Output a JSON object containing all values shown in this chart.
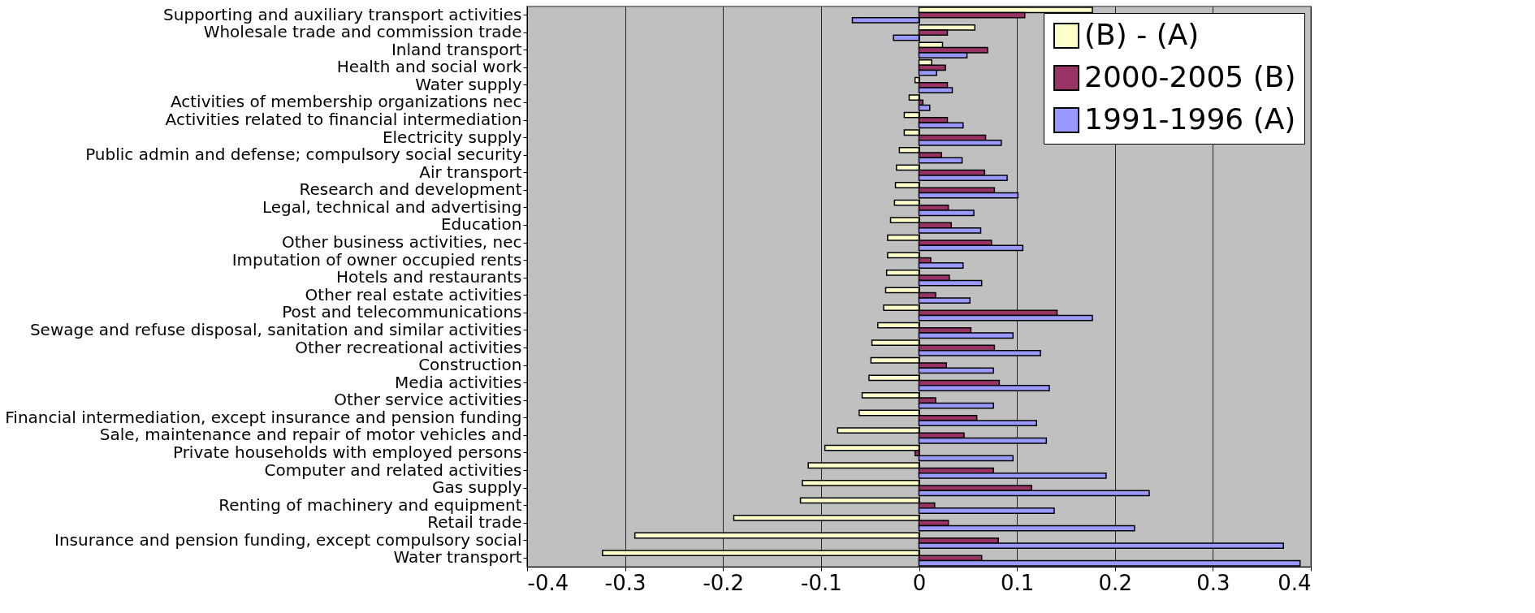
{
  "chart_data": {
    "type": "bar",
    "orientation": "horizontal",
    "categories": [
      "Supporting and auxiliary transport activities",
      "Wholesale trade and commission trade",
      "Inland transport",
      "Health and social work",
      "Water supply",
      "Activities of membership organizations nec",
      "Activities related to financial intermediation",
      "Electricity supply",
      "Public admin and defense; compulsory social security",
      "Air transport",
      "Research and development",
      "Legal, technical and advertising",
      "Education",
      "Other business activities, nec",
      "Imputation of owner occupied rents",
      "Hotels and restaurants",
      "Other real estate activities",
      "Post and telecommunications",
      "Sewage and refuse disposal, sanitation and similar activities",
      "Other recreational activities",
      "Construction",
      "Media activities",
      "Other service activities",
      "Financial intermediation, except insurance and pension funding",
      "Sale, maintenance and repair of motor vehicles and",
      "Private households with employed persons",
      "Computer and related activities",
      "Gas supply",
      "Renting of machinery and equipment",
      "Retail trade",
      "Insurance and pension funding, except compulsory social",
      "Water transport"
    ],
    "series": [
      {
        "name": "(B) - (A)",
        "color": "#ffffcc",
        "values": [
          0.177,
          0.057,
          0.024,
          0.013,
          -0.004,
          -0.01,
          -0.015,
          -0.015,
          -0.02,
          -0.023,
          -0.024,
          -0.025,
          -0.029,
          -0.032,
          -0.032,
          -0.033,
          -0.034,
          -0.036,
          -0.042,
          -0.048,
          -0.049,
          -0.051,
          -0.058,
          -0.061,
          -0.083,
          -0.096,
          -0.113,
          -0.119,
          -0.121,
          -0.189,
          -0.29,
          -0.323
        ]
      },
      {
        "name": "2000-2005 (B)",
        "color": "#993366",
        "values": [
          0.108,
          0.029,
          0.07,
          0.027,
          0.029,
          0.004,
          0.029,
          0.068,
          0.023,
          0.067,
          0.077,
          0.03,
          0.033,
          0.074,
          0.012,
          0.031,
          0.017,
          0.141,
          0.053,
          0.077,
          0.028,
          0.082,
          0.017,
          0.059,
          0.046,
          -0.004,
          0.076,
          0.115,
          0.016,
          0.03,
          0.081,
          0.064
        ]
      },
      {
        "name": "1991-1996 (A)",
        "color": "#9999ff",
        "values": [
          -0.068,
          -0.026,
          0.049,
          0.018,
          0.034,
          0.011,
          0.045,
          0.084,
          0.044,
          0.09,
          0.101,
          0.056,
          0.063,
          0.106,
          0.045,
          0.064,
          0.052,
          0.177,
          0.096,
          0.124,
          0.076,
          0.133,
          0.076,
          0.12,
          0.13,
          0.096,
          0.191,
          0.235,
          0.138,
          0.22,
          0.372,
          0.389
        ]
      }
    ],
    "xlim": [
      -0.4,
      0.4
    ],
    "xticks": [
      -0.4,
      -0.3,
      -0.2,
      -0.1,
      0,
      0.1,
      0.2,
      0.3,
      0.4
    ],
    "grid": "x",
    "legend": "top right"
  }
}
